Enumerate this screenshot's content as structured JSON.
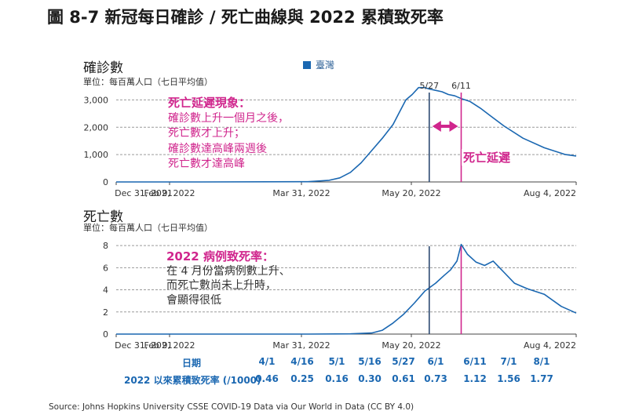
{
  "figure_title": "圖 8-7 新冠每日確診 / 死亡曲線與 2022 累積致死率",
  "legend": {
    "label": "臺灣",
    "color": "#1a67b1"
  },
  "accent_color": "#d0268d",
  "cases_panel": {
    "title": "確診數",
    "unit": "單位：每百萬人口（七日平均值）",
    "annotation": {
      "head": "死亡延遲現象：",
      "lines": [
        "確診數上升一個月之後，",
        "死亡數才上升；",
        "確診數達高峰兩週後",
        "死亡數才達高峰"
      ]
    },
    "delay_label": "死亡延遲",
    "marker_labels": [
      "5/27",
      "6/11"
    ]
  },
  "deaths_panel": {
    "title": "死亡數",
    "unit": "單位：每百萬人口（七日平均值）",
    "annotation": {
      "head": "2022 病例致死率：",
      "lines": [
        "在 4 月份當病例數上升、",
        "而死亡數尚未上升時，",
        "會顯得很低"
      ]
    }
  },
  "table": {
    "row1_label": "日期",
    "row2_label": "2022 以來累積致死率 (/1000)",
    "dates": [
      "4/1",
      "4/16",
      "5/1",
      "5/16",
      "5/27",
      "6/1",
      "6/11",
      "7/1",
      "8/1"
    ],
    "rates": [
      "0.46",
      "0.25",
      "0.16",
      "0.30",
      "0.61",
      "0.73",
      "1.12",
      "1.56",
      "1.77"
    ]
  },
  "source": "Source: Johns Hopkins University CSSE COVID-19 Data via Our World in Data (CC BY 4.0)",
  "chart_data": [
    {
      "type": "line",
      "title": "確診數",
      "ylabel": "每百萬人口（七日平均值）",
      "x_tick_labels": [
        "Dec 31, 2021",
        "Feb 9, 2022",
        "Mar 31, 2022",
        "May 20, 2022",
        "Aug 4, 2022"
      ],
      "y_tick_labels": [
        "0",
        "1,000",
        "2,000",
        "3,000"
      ],
      "ylim": [
        0,
        3500
      ],
      "grid": true,
      "xlim": [
        "2021-12-31",
        "2022-08-04"
      ],
      "series": [
        {
          "name": "臺灣",
          "x": [
            "2021-12-31",
            "2022-02-09",
            "2022-03-31",
            "2022-04-10",
            "2022-04-15",
            "2022-04-20",
            "2022-04-25",
            "2022-04-30",
            "2022-05-05",
            "2022-05-10",
            "2022-05-13",
            "2022-05-16",
            "2022-05-19",
            "2022-05-22",
            "2022-05-25",
            "2022-05-27",
            "2022-05-30",
            "2022-06-02",
            "2022-06-05",
            "2022-06-08",
            "2022-06-11",
            "2022-06-15",
            "2022-06-20",
            "2022-06-25",
            "2022-07-01",
            "2022-07-10",
            "2022-07-20",
            "2022-07-30",
            "2022-08-04"
          ],
          "values": [
            0,
            0,
            10,
            60,
            150,
            350,
            700,
            1150,
            1600,
            2100,
            2550,
            3000,
            3200,
            3450,
            3450,
            3400,
            3350,
            3300,
            3200,
            3150,
            3050,
            2950,
            2700,
            2400,
            2050,
            1600,
            1250,
            1000,
            950
          ]
        }
      ]
    },
    {
      "type": "line",
      "title": "死亡數",
      "ylabel": "每百萬人口（七日平均值）",
      "x_tick_labels": [
        "Dec 31, 2021",
        "Feb 9, 2022",
        "Mar 31, 2022",
        "May 20, 2022",
        "Aug 4, 2022"
      ],
      "y_tick_labels": [
        "0",
        "2",
        "4",
        "6",
        "8"
      ],
      "ylim": [
        0,
        9
      ],
      "grid": true,
      "xlim": [
        "2021-12-31",
        "2022-08-04"
      ],
      "series": [
        {
          "name": "臺灣",
          "x": [
            "2021-12-31",
            "2022-02-09",
            "2022-03-31",
            "2022-04-20",
            "2022-04-30",
            "2022-05-05",
            "2022-05-10",
            "2022-05-15",
            "2022-05-20",
            "2022-05-25",
            "2022-05-30",
            "2022-06-03",
            "2022-06-06",
            "2022-06-09",
            "2022-06-11",
            "2022-06-14",
            "2022-06-18",
            "2022-06-22",
            "2022-06-26",
            "2022-07-01",
            "2022-07-06",
            "2022-07-12",
            "2022-07-20",
            "2022-07-28",
            "2022-08-04"
          ],
          "values": [
            0,
            0,
            0,
            0.02,
            0.1,
            0.35,
            1.0,
            1.8,
            2.8,
            3.9,
            4.6,
            5.3,
            5.8,
            6.6,
            8.1,
            7.2,
            6.5,
            6.2,
            6.6,
            5.6,
            4.6,
            4.1,
            3.6,
            2.5,
            1.9
          ]
        }
      ]
    }
  ]
}
